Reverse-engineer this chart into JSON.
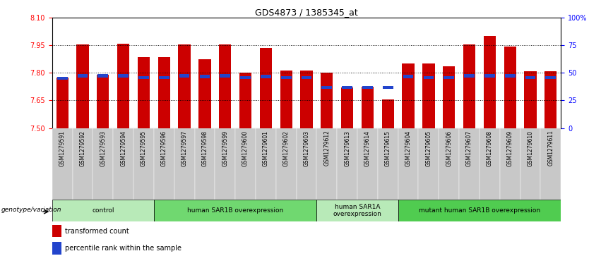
{
  "title": "GDS4873 / 1385345_at",
  "samples": [
    "GSM1279591",
    "GSM1279592",
    "GSM1279593",
    "GSM1279594",
    "GSM1279595",
    "GSM1279596",
    "GSM1279597",
    "GSM1279598",
    "GSM1279599",
    "GSM1279600",
    "GSM1279601",
    "GSM1279602",
    "GSM1279603",
    "GSM1279612",
    "GSM1279613",
    "GSM1279614",
    "GSM1279615",
    "GSM1279604",
    "GSM1279605",
    "GSM1279606",
    "GSM1279607",
    "GSM1279608",
    "GSM1279609",
    "GSM1279610",
    "GSM1279611"
  ],
  "red_values": [
    7.775,
    7.955,
    7.79,
    7.96,
    7.885,
    7.885,
    7.955,
    7.875,
    7.955,
    7.8,
    7.935,
    7.815,
    7.815,
    7.8,
    7.72,
    7.725,
    7.655,
    7.85,
    7.85,
    7.835,
    7.955,
    8.0,
    7.945,
    7.81,
    7.81
  ],
  "blue_values": [
    7.77,
    7.785,
    7.785,
    7.785,
    7.775,
    7.775,
    7.785,
    7.78,
    7.785,
    7.775,
    7.78,
    7.775,
    7.775,
    7.72,
    7.72,
    7.72,
    7.72,
    7.78,
    7.775,
    7.775,
    7.785,
    7.785,
    7.785,
    7.775,
    7.775
  ],
  "ymin": 7.5,
  "ymax": 8.1,
  "yticks": [
    7.5,
    7.65,
    7.8,
    7.95,
    8.1
  ],
  "right_yticks": [
    0,
    25,
    50,
    75,
    100
  ],
  "groups": [
    {
      "label": "control",
      "start": 0,
      "end": 5,
      "color": "#b8eab8"
    },
    {
      "label": "human SAR1B overexpression",
      "start": 5,
      "end": 13,
      "color": "#70d870"
    },
    {
      "label": "human SAR1A\noverexpression",
      "start": 13,
      "end": 17,
      "color": "#b8eab8"
    },
    {
      "label": "mutant human SAR1B overexpression",
      "start": 17,
      "end": 25,
      "color": "#50cc50"
    }
  ],
  "bar_color": "#cc0000",
  "blue_color": "#2244cc",
  "bar_width": 0.6,
  "legend_label_red": "transformed count",
  "legend_label_blue": "percentile rank within the sample",
  "xlabel_group": "genotype/variation",
  "xtick_bg_color": "#c8c8c8"
}
